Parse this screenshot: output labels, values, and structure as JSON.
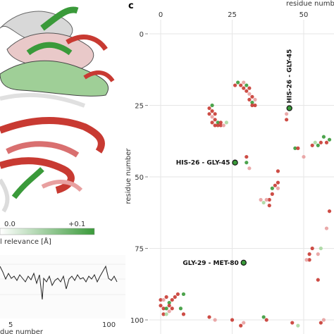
{
  "panel_c_label": "c",
  "colorbar": {
    "min_label": "0.0",
    "max_label": "+0.1",
    "label": "l relevance [Å]"
  },
  "trace_panel": {
    "x_ticks": [
      "5",
      "100"
    ],
    "xlabel": "due number"
  },
  "colors": {
    "red": "#c83a32",
    "green": "#3a9a3a",
    "pink": "#e8a0a0",
    "lightgreen": "#a8d8a0",
    "grid": "#e6e6e6"
  },
  "chart_data": {
    "type": "scatter",
    "title": "",
    "xlabel": "residue number",
    "ylabel": "residue number",
    "x_ticks": [
      0,
      25,
      50
    ],
    "y_ticks": [
      0,
      25,
      50,
      75,
      100
    ],
    "xlim": [
      -2,
      61
    ],
    "ylim": [
      0,
      103
    ],
    "y_inverted": true,
    "grid": true,
    "annotations": [
      {
        "label": "HIS-26 - GLY-45",
        "x": 45,
        "y": 26,
        "rotated": true
      },
      {
        "label": "HIS-26 - GLY-45",
        "x": 26,
        "y": 45,
        "rotated": false
      },
      {
        "label": "GLY-29 - MET-80",
        "x": 29,
        "y": 80,
        "rotated": false
      }
    ],
    "points": [
      {
        "x": 26,
        "y": 18,
        "c": "red"
      },
      {
        "x": 27,
        "y": 17,
        "c": "green"
      },
      {
        "x": 28,
        "y": 18,
        "c": "red"
      },
      {
        "x": 29,
        "y": 17,
        "c": "pink"
      },
      {
        "x": 29,
        "y": 19,
        "c": "red"
      },
      {
        "x": 30,
        "y": 18,
        "c": "green"
      },
      {
        "x": 30,
        "y": 20,
        "c": "red"
      },
      {
        "x": 31,
        "y": 19,
        "c": "red"
      },
      {
        "x": 31,
        "y": 21,
        "c": "pink"
      },
      {
        "x": 31,
        "y": 23,
        "c": "red"
      },
      {
        "x": 32,
        "y": 22,
        "c": "red"
      },
      {
        "x": 32,
        "y": 24,
        "c": "green"
      },
      {
        "x": 32,
        "y": 25,
        "c": "red"
      },
      {
        "x": 33,
        "y": 23,
        "c": "pink"
      },
      {
        "x": 33,
        "y": 25,
        "c": "red"
      },
      {
        "x": 17,
        "y": 26,
        "c": "red"
      },
      {
        "x": 18,
        "y": 25,
        "c": "green"
      },
      {
        "x": 18,
        "y": 27,
        "c": "red"
      },
      {
        "x": 17,
        "y": 28,
        "c": "red"
      },
      {
        "x": 18,
        "y": 29,
        "c": "pink"
      },
      {
        "x": 19,
        "y": 28,
        "c": "red"
      },
      {
        "x": 18,
        "y": 31,
        "c": "red"
      },
      {
        "x": 19,
        "y": 30,
        "c": "red"
      },
      {
        "x": 19,
        "y": 32,
        "c": "red"
      },
      {
        "x": 20,
        "y": 31,
        "c": "green"
      },
      {
        "x": 20,
        "y": 32,
        "c": "red"
      },
      {
        "x": 21,
        "y": 31,
        "c": "red"
      },
      {
        "x": 21,
        "y": 32,
        "c": "red"
      },
      {
        "x": 22,
        "y": 32,
        "c": "pink"
      },
      {
        "x": 23,
        "y": 31,
        "c": "lightgreen"
      },
      {
        "x": 44,
        "y": 28,
        "c": "pink"
      },
      {
        "x": 44,
        "y": 30,
        "c": "red"
      },
      {
        "x": 30,
        "y": 43,
        "c": "red"
      },
      {
        "x": 30,
        "y": 45,
        "c": "green"
      },
      {
        "x": 31,
        "y": 47,
        "c": "pink"
      },
      {
        "x": 41,
        "y": 48,
        "c": "red"
      },
      {
        "x": 41,
        "y": 52,
        "c": "red"
      },
      {
        "x": 40,
        "y": 53,
        "c": "red"
      },
      {
        "x": 41,
        "y": 54,
        "c": "pink"
      },
      {
        "x": 39,
        "y": 54,
        "c": "green"
      },
      {
        "x": 39,
        "y": 56,
        "c": "red"
      },
      {
        "x": 38,
        "y": 58,
        "c": "red"
      },
      {
        "x": 37,
        "y": 58,
        "c": "pink"
      },
      {
        "x": 36,
        "y": 59,
        "c": "lightgreen"
      },
      {
        "x": 38,
        "y": 60,
        "c": "red"
      },
      {
        "x": 35,
        "y": 58,
        "c": "pink"
      },
      {
        "x": 47,
        "y": 40,
        "c": "green"
      },
      {
        "x": 48,
        "y": 40,
        "c": "red"
      },
      {
        "x": 50,
        "y": 43,
        "c": "pink"
      },
      {
        "x": 53,
        "y": 39,
        "c": "red"
      },
      {
        "x": 54,
        "y": 38,
        "c": "lightgreen"
      },
      {
        "x": 55,
        "y": 39,
        "c": "green"
      },
      {
        "x": 56,
        "y": 38,
        "c": "red"
      },
      {
        "x": 57,
        "y": 36,
        "c": "green"
      },
      {
        "x": 58,
        "y": 38,
        "c": "red"
      },
      {
        "x": 59,
        "y": 37,
        "c": "green"
      },
      {
        "x": 59,
        "y": 62,
        "c": "red"
      },
      {
        "x": 58,
        "y": 68,
        "c": "pink"
      },
      {
        "x": 52,
        "y": 77,
        "c": "red"
      },
      {
        "x": 53,
        "y": 75,
        "c": "red"
      },
      {
        "x": 52,
        "y": 79,
        "c": "red"
      },
      {
        "x": 51,
        "y": 79,
        "c": "pink"
      },
      {
        "x": 55,
        "y": 77,
        "c": "pink"
      },
      {
        "x": 56,
        "y": 75,
        "c": "lightgreen"
      },
      {
        "x": 55,
        "y": 86,
        "c": "red"
      },
      {
        "x": 0,
        "y": 93,
        "c": "red"
      },
      {
        "x": 1,
        "y": 93,
        "c": "pink"
      },
      {
        "x": 2,
        "y": 92,
        "c": "red"
      },
      {
        "x": 3,
        "y": 94,
        "c": "green"
      },
      {
        "x": 0,
        "y": 95,
        "c": "red"
      },
      {
        "x": 1,
        "y": 96,
        "c": "red"
      },
      {
        "x": 2,
        "y": 96,
        "c": "green"
      },
      {
        "x": 3,
        "y": 95,
        "c": "red"
      },
      {
        "x": 4,
        "y": 93,
        "c": "red"
      },
      {
        "x": 5,
        "y": 92,
        "c": "red"
      },
      {
        "x": 6,
        "y": 91,
        "c": "red"
      },
      {
        "x": 8,
        "y": 91,
        "c": "green"
      },
      {
        "x": 1,
        "y": 98,
        "c": "red"
      },
      {
        "x": 2,
        "y": 98,
        "c": "lightgreen"
      },
      {
        "x": 3,
        "y": 97,
        "c": "pink"
      },
      {
        "x": 4,
        "y": 96,
        "c": "red"
      },
      {
        "x": 7,
        "y": 96,
        "c": "green"
      },
      {
        "x": 8,
        "y": 98,
        "c": "red"
      },
      {
        "x": 17,
        "y": 99,
        "c": "red"
      },
      {
        "x": 19,
        "y": 100,
        "c": "pink"
      },
      {
        "x": 25,
        "y": 100,
        "c": "red"
      },
      {
        "x": 28,
        "y": 102,
        "c": "red"
      },
      {
        "x": 29,
        "y": 101,
        "c": "pink"
      },
      {
        "x": 36,
        "y": 99,
        "c": "green"
      },
      {
        "x": 37,
        "y": 100,
        "c": "red"
      },
      {
        "x": 46,
        "y": 101,
        "c": "red"
      },
      {
        "x": 48,
        "y": 102,
        "c": "lightgreen"
      },
      {
        "x": 56,
        "y": 101,
        "c": "red"
      },
      {
        "x": 57,
        "y": 100,
        "c": "pink"
      }
    ]
  }
}
